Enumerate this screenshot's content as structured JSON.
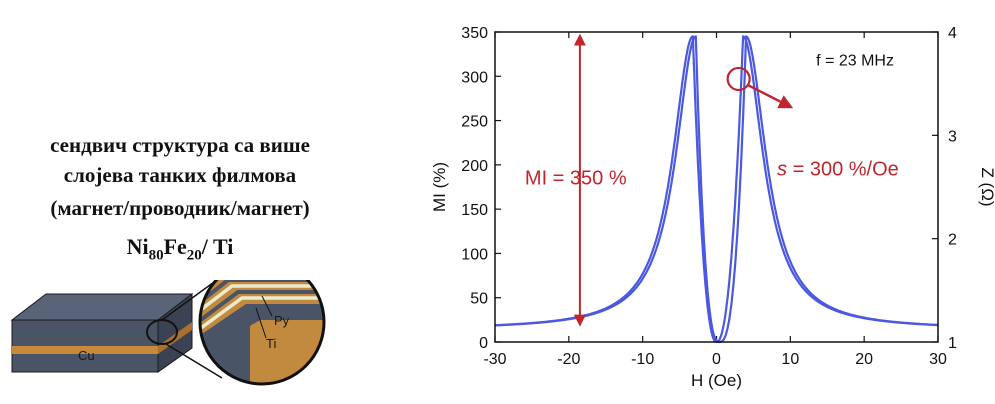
{
  "left_panel": {
    "line1": "сендвич структура са више",
    "line2": "слојева танких филмова",
    "line3": "(магнет/проводник/магнет)",
    "formula": {
      "el1": "Ni",
      "sub1": "80",
      "el2": "Fe",
      "sub2": "20",
      "rest": "/ Ti"
    },
    "diagram_labels": {
      "substrate": "Cu",
      "layer_py": "Py",
      "layer_ti": "Ti"
    },
    "colors": {
      "slab": "#4a5467",
      "copper": "#c88a3a",
      "stripe": "#e8eccd",
      "outline": "#1a1a1a"
    }
  },
  "chart_data": {
    "type": "line",
    "xlabel": "H (Oe)",
    "ylabel": "MI (%)",
    "ylabel_right": "Z (Ω)",
    "xlim": [
      -30,
      30
    ],
    "ylim": [
      0,
      350
    ],
    "ylim_right": [
      1,
      4
    ],
    "xticks": [
      -30,
      -20,
      -10,
      0,
      10,
      20,
      30
    ],
    "yticks": [
      0,
      50,
      100,
      150,
      200,
      250,
      300,
      350
    ],
    "yticks_right": [
      1,
      2,
      3,
      4
    ],
    "grid": false,
    "series_color": "#4b58e0",
    "peaks": [
      {
        "x": -3.2,
        "y": 345
      },
      {
        "x": 3.6,
        "y": 345
      }
    ],
    "minimum": {
      "x": 0,
      "y": 0
    },
    "tail_values": {
      "x": [
        -30,
        30
      ],
      "y": [
        14,
        14
      ]
    },
    "annotations": {
      "frequency": "f = 23 MHz",
      "mi_label": "MI = 350 %",
      "sensitivity_symbol": "s",
      "sensitivity_value": " = 300 %/Oe",
      "sensitivity_point": {
        "x": 3,
        "y": 297
      },
      "mi_arrow_x": -18.5,
      "mi_arrow_range": [
        20,
        350
      ],
      "annotation_color": "#c0262d"
    }
  }
}
